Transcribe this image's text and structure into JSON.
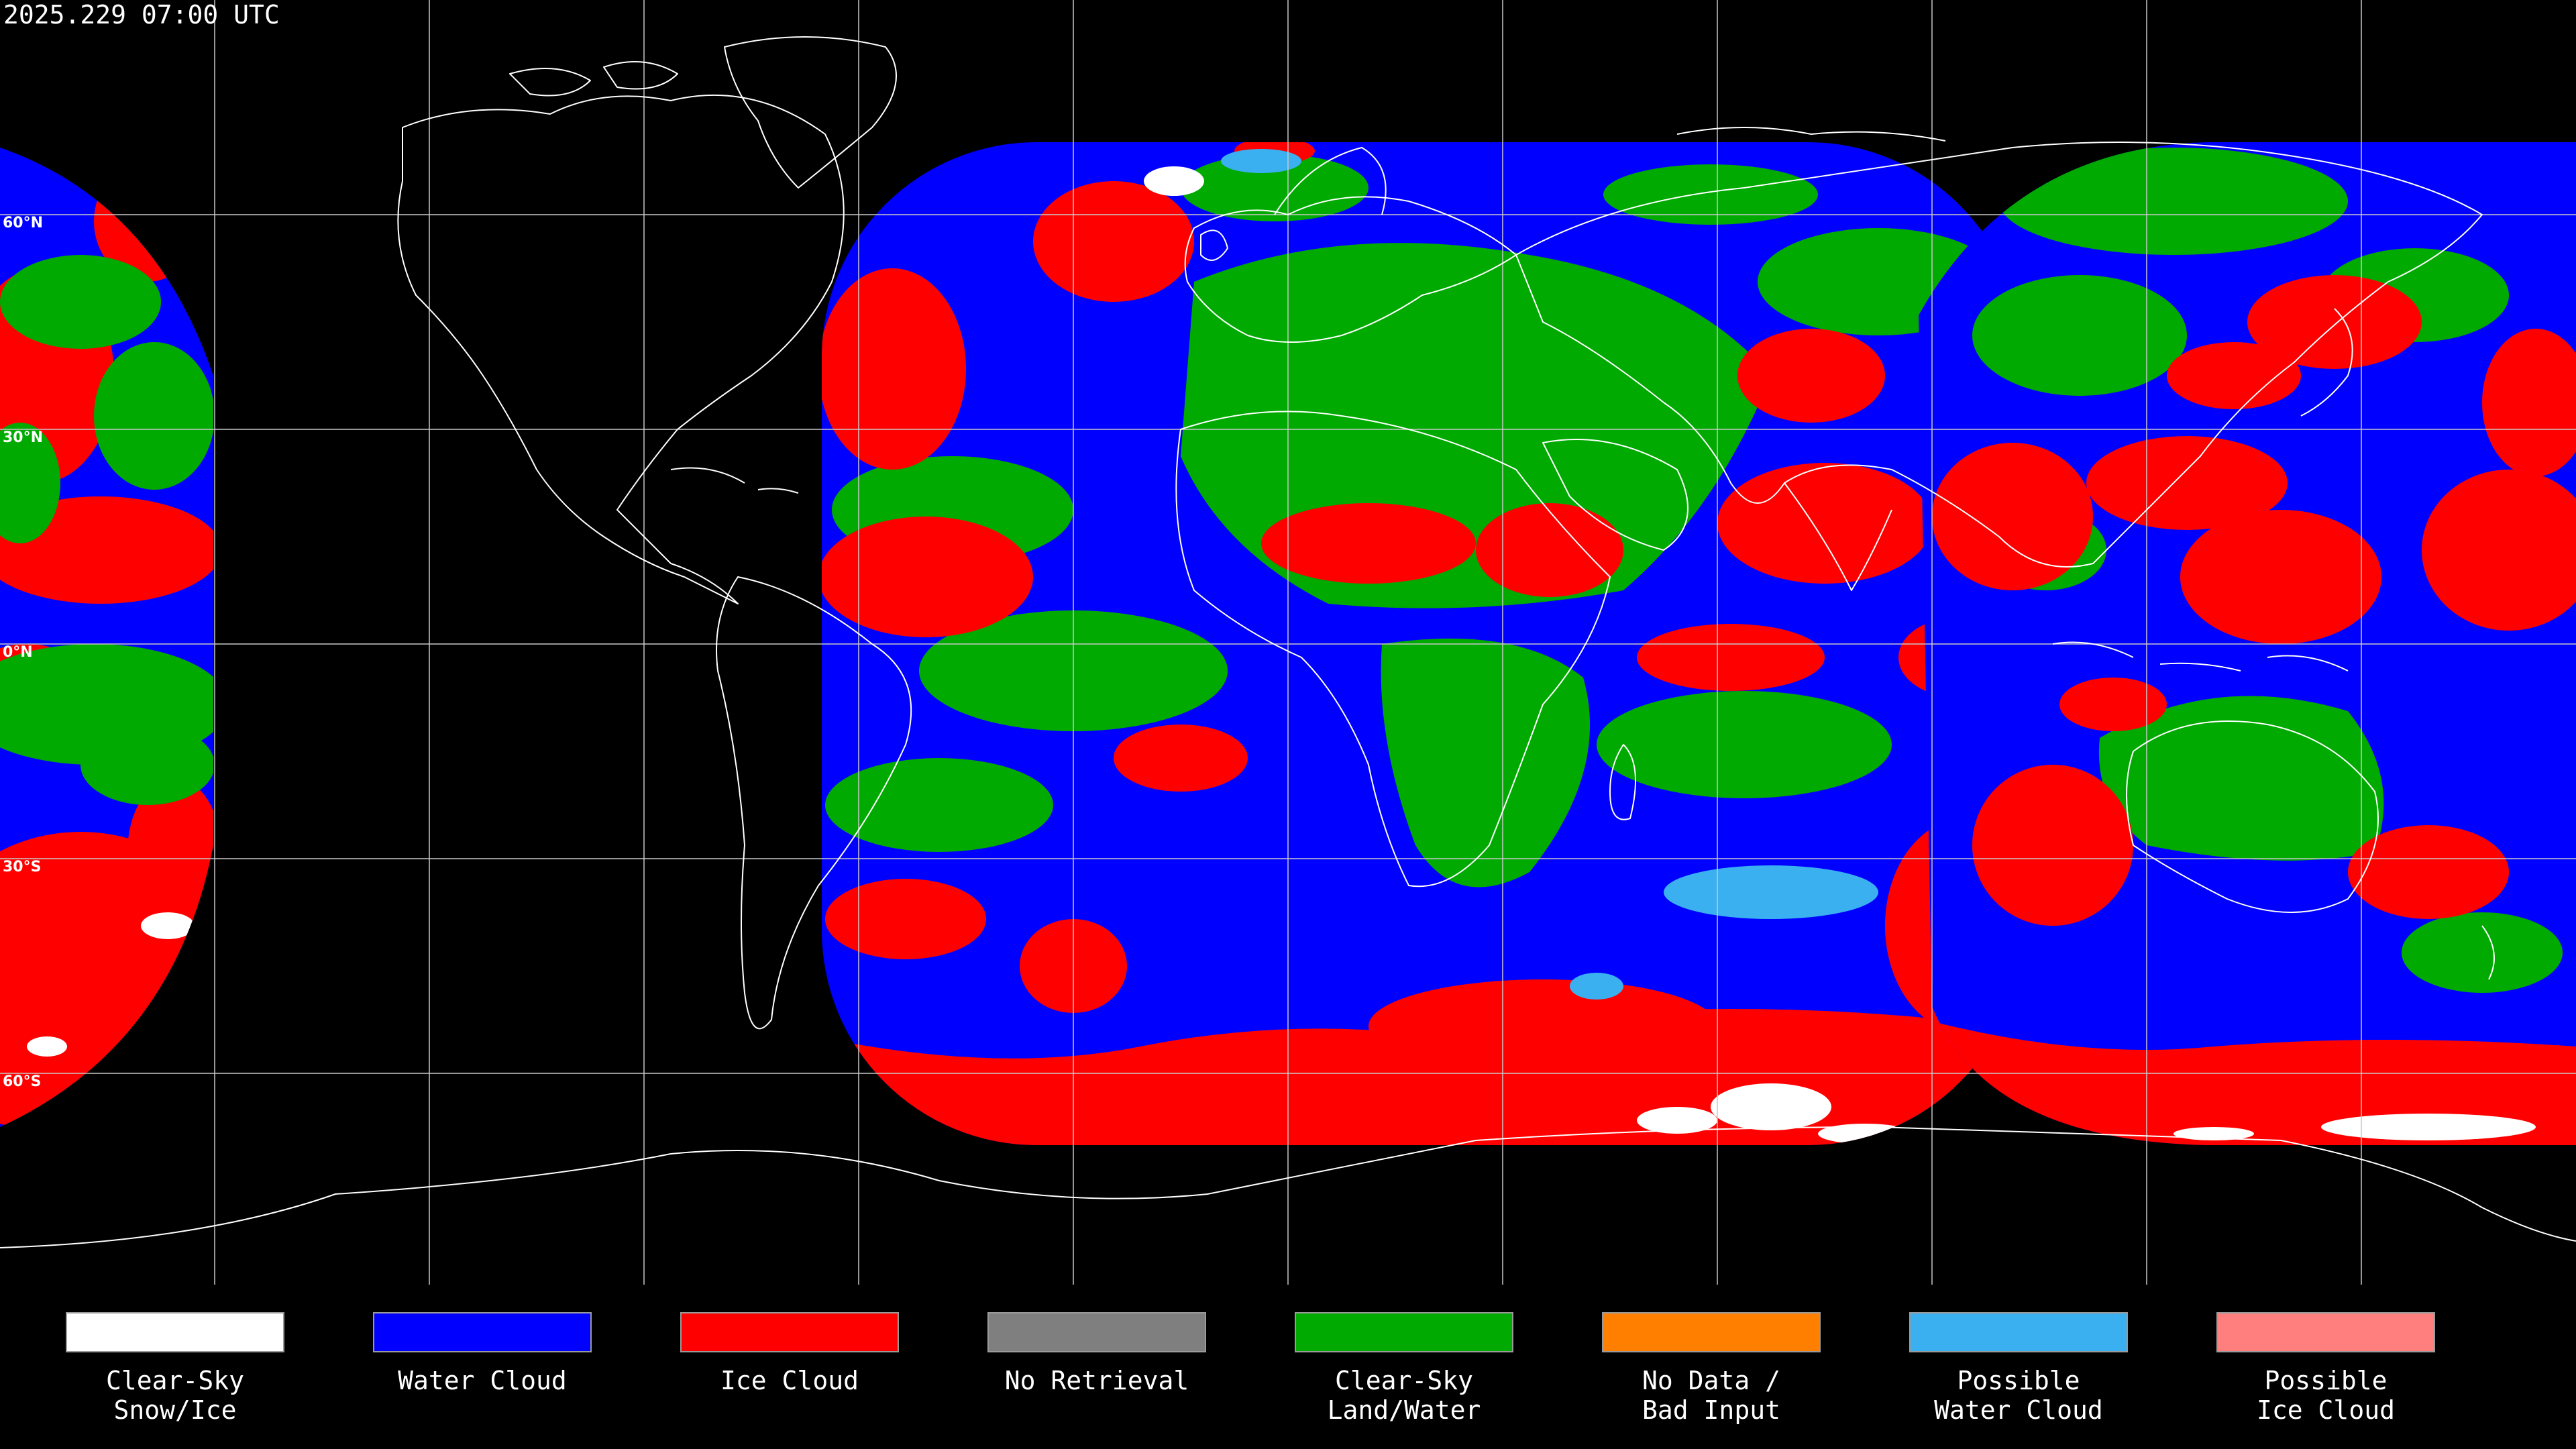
{
  "timestamp": "2025.229 07:00 UTC",
  "lat_labels": [
    "60°N",
    "30°N",
    "0°N",
    "30°S",
    "60°S"
  ],
  "legend": [
    {
      "label": "Clear-Sky\nSnow/Ice",
      "color": "#ffffff"
    },
    {
      "label": "Water Cloud",
      "color": "#0000ff"
    },
    {
      "label": "Ice Cloud",
      "color": "#ff0000"
    },
    {
      "label": "No Retrieval",
      "color": "#7f7f7f"
    },
    {
      "label": "Clear-Sky\nLand/Water",
      "color": "#00aa00"
    },
    {
      "label": "No Data /\nBad Input",
      "color": "#ff8000"
    },
    {
      "label": "Possible\nWater Cloud",
      "color": "#3ab0f0"
    },
    {
      "label": "Possible\nIce Cloud",
      "color": "#ff7f7f"
    }
  ],
  "colors": {
    "background": "#000000",
    "gridline": "#c8c8c8",
    "coastline": "#ffffff"
  }
}
